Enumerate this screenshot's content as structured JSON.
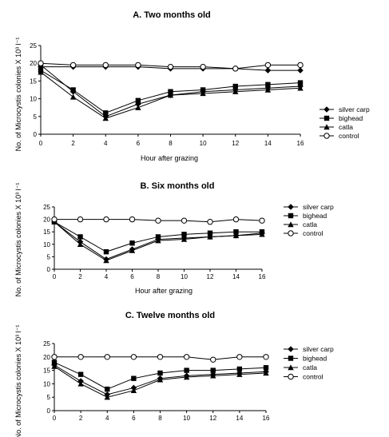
{
  "chart_data": [
    {
      "type": "line",
      "title": "A. Two months old",
      "xlabel": "Hour after grazing",
      "ylabel": "No. of Microcystis colonies X 10³ l⁻¹",
      "x": [
        0,
        2,
        4,
        6,
        8,
        10,
        12,
        14,
        16
      ],
      "xlim": [
        0,
        16
      ],
      "ylim": [
        0,
        25
      ],
      "yticks": [
        0,
        5,
        10,
        15,
        20,
        25
      ],
      "xticks": [
        0,
        2,
        4,
        6,
        8,
        10,
        12,
        14,
        16
      ],
      "grid": false,
      "legend_position": "right",
      "series": [
        {
          "name": "silver carp",
          "marker": "diamond",
          "values": [
            19.5,
            12,
            5,
            8.5,
            11,
            12,
            12.5,
            13,
            13.5
          ]
        },
        {
          "name": "bighead",
          "marker": "square",
          "values": [
            18,
            12.5,
            6,
            9.5,
            12,
            12.5,
            13.5,
            14,
            14.5
          ]
        },
        {
          "name": "catla",
          "marker": "triangle",
          "values": [
            17.5,
            10.5,
            4.5,
            7.5,
            11,
            11.5,
            12,
            12.5,
            13
          ]
        },
        {
          "name": "control",
          "marker": "circle",
          "values": [
            20,
            19.5,
            19.5,
            19.5,
            19,
            19,
            18.5,
            19.5,
            19.5
          ]
        }
      ],
      "flat_series_values": [
        19,
        19,
        19,
        19,
        18.5,
        18.5,
        18.5,
        18,
        18
      ]
    },
    {
      "type": "line",
      "title": "B. Six months old",
      "xlabel": "Hour after grazing",
      "ylabel": "No. of Microcystis colonies X 10³ l⁻¹",
      "x": [
        0,
        2,
        4,
        6,
        8,
        10,
        12,
        14,
        16
      ],
      "xlim": [
        0,
        16
      ],
      "ylim": [
        0,
        25
      ],
      "yticks": [
        0,
        5,
        10,
        15,
        20,
        25
      ],
      "xticks": [
        0,
        2,
        4,
        6,
        8,
        10,
        12,
        14,
        16
      ],
      "grid": false,
      "legend_position": "right",
      "series": [
        {
          "name": "silver carp",
          "marker": "diamond",
          "values": [
            19,
            11,
            4,
            8,
            12,
            12.5,
            13,
            13.5,
            14.5
          ]
        },
        {
          "name": "bighead",
          "marker": "square",
          "values": [
            19,
            13,
            7,
            10.5,
            13,
            14,
            14.5,
            15,
            15
          ]
        },
        {
          "name": "catla",
          "marker": "triangle",
          "values": [
            19,
            10,
            3.5,
            7.5,
            11.5,
            12,
            13,
            13.5,
            14
          ]
        },
        {
          "name": "control",
          "marker": "circle",
          "values": [
            20,
            20,
            20,
            20,
            19.5,
            19.5,
            19,
            20,
            19.5
          ]
        }
      ]
    },
    {
      "type": "line",
      "title": "C. Twelve months old",
      "xlabel": "Hour after grazing",
      "ylabel": "No. of Microcystis colonies X 10³ l⁻¹",
      "x": [
        0,
        2,
        4,
        6,
        8,
        10,
        12,
        14,
        16
      ],
      "xlim": [
        0,
        16
      ],
      "ylim": [
        0,
        25
      ],
      "yticks": [
        0,
        5,
        10,
        15,
        20,
        25
      ],
      "xticks": [
        0,
        2,
        4,
        6,
        8,
        10,
        12,
        14,
        16
      ],
      "grid": false,
      "legend_position": "right",
      "series": [
        {
          "name": "silver carp",
          "marker": "diamond",
          "values": [
            17,
            11,
            6,
            8.5,
            12,
            13,
            13.5,
            14,
            14.5
          ]
        },
        {
          "name": "bighead",
          "marker": "square",
          "values": [
            18,
            13.5,
            8,
            12,
            14,
            15,
            15,
            15.5,
            16
          ]
        },
        {
          "name": "catla",
          "marker": "triangle",
          "values": [
            16.5,
            10,
            5,
            7.5,
            11.5,
            12.5,
            13,
            13.5,
            14
          ]
        },
        {
          "name": "control",
          "marker": "circle",
          "values": [
            20,
            20,
            20,
            20,
            20,
            20,
            19,
            20,
            20
          ]
        }
      ]
    }
  ]
}
